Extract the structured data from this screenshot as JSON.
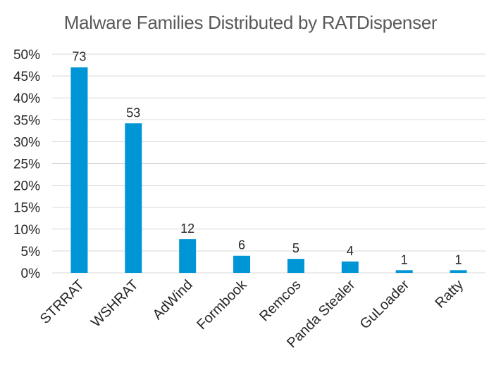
{
  "chart_data": {
    "type": "bar",
    "title": "Malware Families Distributed by RATDispenser",
    "xlabel": "",
    "ylabel": "",
    "categories": [
      "STRRAT",
      "WSHRAT",
      "AdWind",
      "Formbook",
      "Remcos",
      "Panda Stealer",
      "GuLoader",
      "Ratty"
    ],
    "values": [
      0.47,
      0.342,
      0.077,
      0.039,
      0.032,
      0.026,
      0.006,
      0.006
    ],
    "data_labels": [
      "73",
      "53",
      "12",
      "6",
      "5",
      "4",
      "1",
      "1"
    ],
    "ylim": [
      0,
      0.5
    ],
    "yticks": [
      "0%",
      "5%",
      "10%",
      "15%",
      "20%",
      "25%",
      "30%",
      "35%",
      "40%",
      "45%",
      "50%"
    ],
    "grid": true,
    "legend": "none",
    "colors": {
      "bar": "#0096D6",
      "grid": "#D9D9D9",
      "axis_text": "#262626",
      "title_text": "#595959",
      "label_text": "#262626"
    }
  }
}
